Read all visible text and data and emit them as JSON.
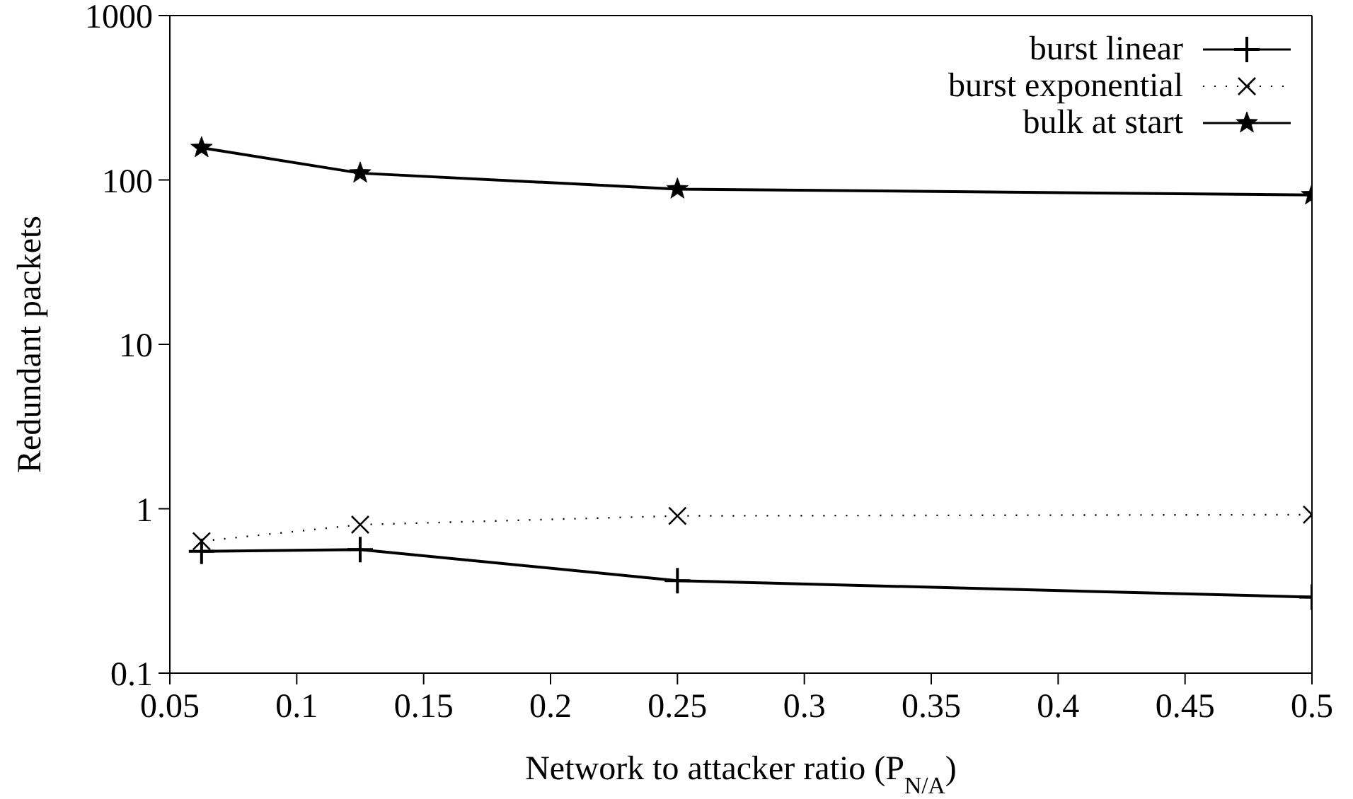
{
  "chart_data": {
    "type": "line",
    "xlabel": "Network to attacker ratio (P$_{N/A}$)",
    "ylabel": "Redundant packets",
    "x": [
      0.0625,
      0.125,
      0.25,
      0.5
    ],
    "series": [
      {
        "name": "burst linear",
        "color": "#000000",
        "marker": "plus",
        "line_style": "solid",
        "values": [
          0.55,
          0.565,
          0.365,
          0.29
        ]
      },
      {
        "name": "burst exponential",
        "color": "#000000",
        "marker": "cross",
        "line_style": "dotted",
        "values": [
          0.635,
          0.8,
          0.905,
          0.92
        ]
      },
      {
        "name": "bulk at start",
        "color": "#000000",
        "marker": "star",
        "line_style": "solid",
        "values": [
          157,
          110,
          88,
          81
        ]
      }
    ],
    "log": "y",
    "xlim": [
      0.05,
      0.5
    ],
    "xticks": [
      0.05,
      0.1,
      0.15,
      0.2,
      0.25,
      0.3,
      0.35,
      0.4,
      0.45,
      0.5
    ],
    "ylim": [
      0.1,
      1000
    ],
    "yticks": [
      0.1,
      1,
      10,
      100,
      1000
    ],
    "grid": false,
    "legend": "top right"
  }
}
